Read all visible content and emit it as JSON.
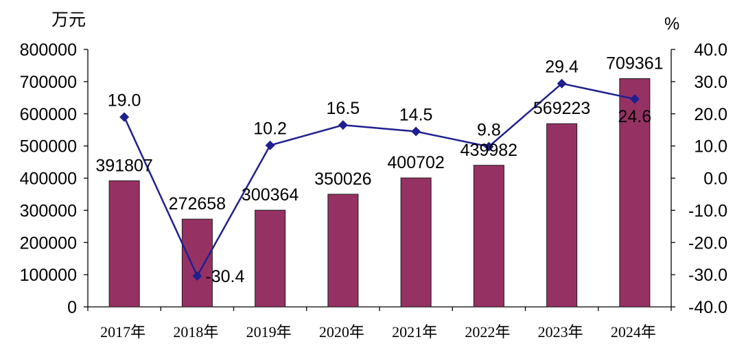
{
  "chart_data": {
    "type": "bar",
    "categories": [
      "2017年",
      "2018年",
      "2019年",
      "2020年",
      "2021年",
      "2022年",
      "2023年",
      "2024年"
    ],
    "series": [
      {
        "type": "bar",
        "axis": "left",
        "values": [
          391807,
          272658,
          300364,
          350026,
          400702,
          439982,
          569223,
          709361
        ],
        "value_labels": [
          "391807",
          "272658",
          "300364",
          "350026",
          "400702",
          "439982",
          "569223",
          "709361"
        ],
        "color": "#963263"
      },
      {
        "type": "line",
        "axis": "right",
        "marker": "diamond",
        "values": [
          19.0,
          -30.4,
          10.2,
          16.5,
          14.5,
          9.8,
          29.4,
          24.6
        ],
        "value_labels": [
          "19.0",
          "-30.4",
          "10.2",
          "16.5",
          "14.5",
          "9.8",
          "29.4",
          "24.6"
        ],
        "color": "#1f1f8f"
      }
    ],
    "y_left": {
      "unit": "万元",
      "ylim": [
        0,
        800000
      ],
      "ticks": [
        "800000",
        "700000",
        "600000",
        "500000",
        "400000",
        "300000",
        "200000",
        "100000",
        "0"
      ]
    },
    "y_right": {
      "unit": "%",
      "ylim": [
        -40,
        40
      ],
      "ticks": [
        "40.0",
        "30.0",
        "20.0",
        "10.0",
        "0.0",
        "-10.0",
        "-20.0",
        "-30.0",
        "-40.0"
      ]
    },
    "grid": false,
    "legend": "none"
  }
}
